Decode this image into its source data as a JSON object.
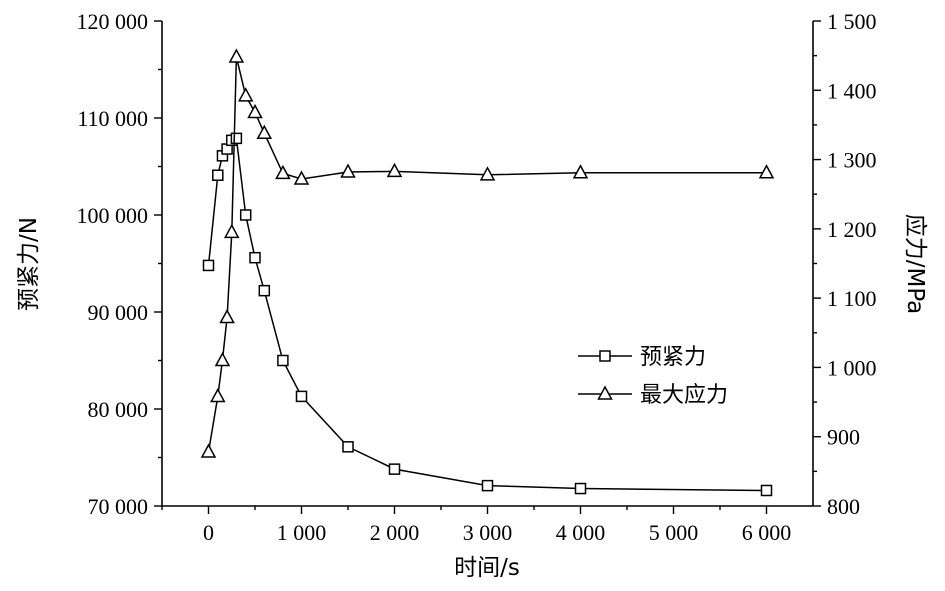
{
  "chart_data": {
    "type": "line",
    "title": "",
    "xlabel": "时间/s",
    "ylabel_left": "预紧力/N",
    "ylabel_right": "应力/MPa",
    "xlim": [
      -500,
      6500
    ],
    "ylim_left": [
      70000,
      120000
    ],
    "ylim_right": [
      800,
      1500
    ],
    "x_ticks": [
      0,
      1000,
      2000,
      3000,
      4000,
      5000,
      6000
    ],
    "x_tick_labels": [
      "0",
      "1 000",
      "2 000",
      "3 000",
      "4 000",
      "5 000",
      "6 000"
    ],
    "y_left_ticks": [
      70000,
      80000,
      90000,
      100000,
      110000,
      120000
    ],
    "y_left_tick_labels": [
      "70 000",
      "80 000",
      "90 000",
      "100 000",
      "110 000",
      "120 000"
    ],
    "y_right_ticks": [
      800,
      900,
      1000,
      1100,
      1200,
      1300,
      1400,
      1500
    ],
    "y_right_tick_labels": [
      "800",
      "900",
      "1 000",
      "1 100",
      "1 200",
      "1 300",
      "1 400",
      "1 500"
    ],
    "legend_position": "center-right",
    "grid": false,
    "series": [
      {
        "name": "预紧力",
        "axis": "left",
        "marker": "square",
        "x": [
          0,
          100,
          150,
          200,
          250,
          300,
          400,
          500,
          600,
          800,
          1000,
          1500,
          2000,
          3000,
          4000,
          6000
        ],
        "y": [
          94800,
          104100,
          106100,
          106800,
          107700,
          107900,
          100000,
          95600,
          92200,
          85000,
          81300,
          76100,
          73800,
          72100,
          71800,
          71600
        ]
      },
      {
        "name": "最大应力",
        "axis": "right",
        "marker": "triangle",
        "x": [
          0,
          100,
          150,
          200,
          250,
          300,
          400,
          500,
          600,
          800,
          1000,
          1500,
          2000,
          3000,
          4000,
          6000
        ],
        "y": [
          878,
          958,
          1010,
          1072,
          1195,
          1448,
          1392,
          1368,
          1338,
          1280,
          1272,
          1282,
          1283,
          1278,
          1281,
          1281
        ]
      }
    ]
  }
}
